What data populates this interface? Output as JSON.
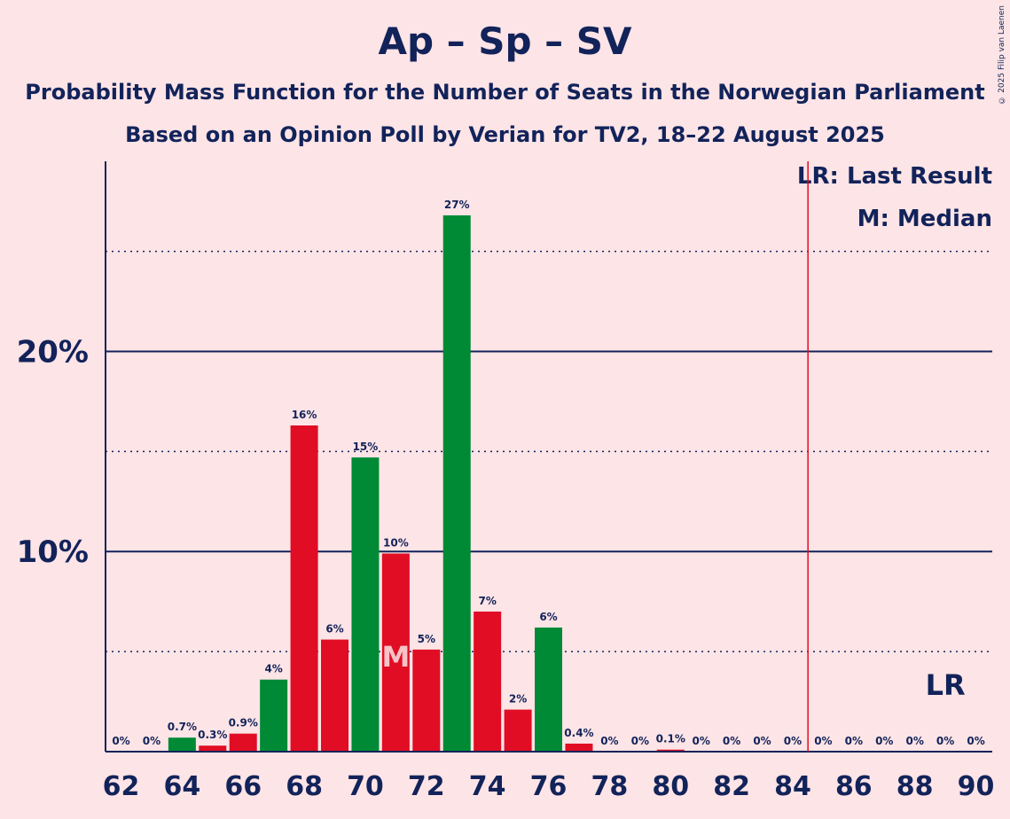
{
  "title": "Ap – Sp – SV",
  "subtitle1": "Probability Mass Function for the Number of Seats in the Norwegian Parliament",
  "subtitle2": "Based on an Opinion Poll by Verian for TV2, 18–22 August 2025",
  "copyright": "© 2025 Filip van Laenen",
  "legend": {
    "last_result": "LR: Last Result",
    "median": "M: Median"
  },
  "markers": {
    "median_label": "M",
    "median_seat": 71,
    "last_result_label": "LR",
    "last_result_seat": 89,
    "majority_line_seat": 84.5
  },
  "colors": {
    "background": "#fde4e6",
    "text": "#12235a",
    "red": "#e00d24",
    "green": "#008a35",
    "majority_line": "#e00d24"
  },
  "chart_data": {
    "type": "bar",
    "ylim": [
      0,
      29.5
    ],
    "xlim": [
      62,
      90
    ],
    "grid": true,
    "yticks": [
      {
        "value": 10,
        "label": "10%"
      },
      {
        "value": 20,
        "label": "20%"
      }
    ],
    "ydotted": [
      5,
      15,
      25
    ],
    "xticks": [
      62,
      64,
      66,
      68,
      70,
      72,
      74,
      76,
      78,
      80,
      82,
      84,
      86,
      88,
      90
    ],
    "bars": [
      {
        "seat": 62,
        "value": 0,
        "label": "0%",
        "color": "red"
      },
      {
        "seat": 63,
        "value": 0,
        "label": "0%",
        "color": "red"
      },
      {
        "seat": 64,
        "value": 0.7,
        "label": "0.7%",
        "color": "green"
      },
      {
        "seat": 65,
        "value": 0.3,
        "label": "0.3%",
        "color": "red"
      },
      {
        "seat": 66,
        "value": 0.9,
        "label": "0.9%",
        "color": "red"
      },
      {
        "seat": 67,
        "value": 3.6,
        "label": "4%",
        "color": "green"
      },
      {
        "seat": 68,
        "value": 16.3,
        "label": "16%",
        "color": "red"
      },
      {
        "seat": 69,
        "value": 5.6,
        "label": "6%",
        "color": "red"
      },
      {
        "seat": 70,
        "value": 14.7,
        "label": "15%",
        "color": "green"
      },
      {
        "seat": 71,
        "value": 9.9,
        "label": "10%",
        "color": "red"
      },
      {
        "seat": 72,
        "value": 5.1,
        "label": "5%",
        "color": "red"
      },
      {
        "seat": 73,
        "value": 26.8,
        "label": "27%",
        "color": "green"
      },
      {
        "seat": 74,
        "value": 7.0,
        "label": "7%",
        "color": "red"
      },
      {
        "seat": 75,
        "value": 2.1,
        "label": "2%",
        "color": "red"
      },
      {
        "seat": 76,
        "value": 6.2,
        "label": "6%",
        "color": "green"
      },
      {
        "seat": 77,
        "value": 0.4,
        "label": "0.4%",
        "color": "red"
      },
      {
        "seat": 78,
        "value": 0,
        "label": "0%",
        "color": "red"
      },
      {
        "seat": 79,
        "value": 0,
        "label": "0%",
        "color": "red"
      },
      {
        "seat": 80,
        "value": 0.1,
        "label": "0.1%",
        "color": "red"
      },
      {
        "seat": 81,
        "value": 0,
        "label": "0%",
        "color": "red"
      },
      {
        "seat": 82,
        "value": 0,
        "label": "0%",
        "color": "red"
      },
      {
        "seat": 83,
        "value": 0,
        "label": "0%",
        "color": "red"
      },
      {
        "seat": 84,
        "value": 0,
        "label": "0%",
        "color": "red"
      },
      {
        "seat": 85,
        "value": 0,
        "label": "0%",
        "color": "red"
      },
      {
        "seat": 86,
        "value": 0,
        "label": "0%",
        "color": "red"
      },
      {
        "seat": 87,
        "value": 0,
        "label": "0%",
        "color": "red"
      },
      {
        "seat": 88,
        "value": 0,
        "label": "0%",
        "color": "red"
      },
      {
        "seat": 89,
        "value": 0,
        "label": "0%",
        "color": "red"
      },
      {
        "seat": 90,
        "value": 0,
        "label": "0%",
        "color": "red"
      }
    ]
  }
}
